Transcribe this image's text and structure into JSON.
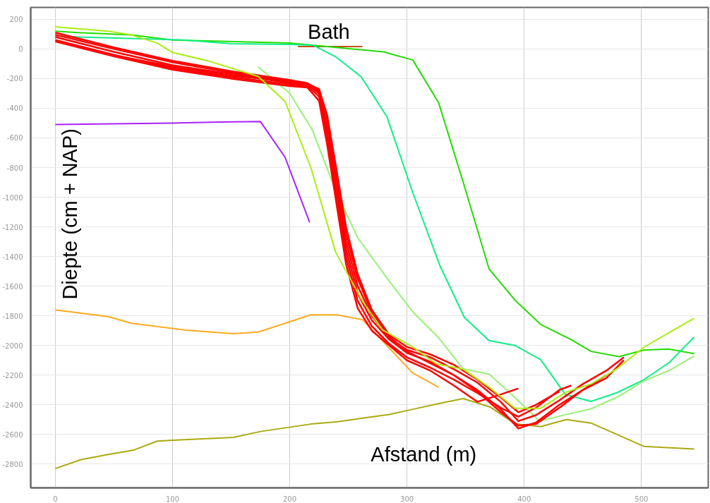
{
  "chart_data": {
    "type": "line",
    "title": "Bath",
    "xlabel": "Afstand (m)",
    "ylabel": "Diepte (cm + NAP)",
    "xlim": [
      -21,
      557
    ],
    "ylim": [
      -2960,
      280
    ],
    "xticks": [
      0,
      100,
      200,
      300,
      400,
      500
    ],
    "yticks": [
      -2800,
      -2600,
      -2400,
      -2200,
      -2000,
      -1800,
      -1600,
      -1400,
      -1200,
      -1000,
      -800,
      -600,
      -400,
      -200,
      0,
      200
    ],
    "grid": true,
    "line_style": "solid",
    "marker": "none",
    "series": [
      {
        "color": "#aa22ff",
        "x": [
          0,
          50,
          100,
          140,
          175,
          196,
          217
        ],
        "values": [
          -510,
          -505,
          -500,
          -493,
          -490,
          -731,
          -1170
        ]
      },
      {
        "color": "#ffaa22",
        "x": [
          0,
          20,
          45,
          65,
          110,
          152,
          173,
          218,
          240,
          262,
          305,
          327
        ],
        "values": [
          -1760,
          -1780,
          -1805,
          -1850,
          -1895,
          -1920,
          -1910,
          -1793,
          -1793,
          -1826,
          -2186,
          -2281
        ]
      },
      {
        "color": "#aaaa11",
        "x": [
          0,
          22,
          45,
          67,
          87,
          110,
          152,
          175,
          218,
          240,
          262,
          285,
          305,
          328,
          348,
          371,
          392,
          414,
          436,
          457,
          502,
          545
        ],
        "values": [
          -2830,
          -2770,
          -2735,
          -2705,
          -2645,
          -2635,
          -2620,
          -2580,
          -2530,
          -2515,
          -2490,
          -2465,
          -2430,
          -2390,
          -2358,
          -2415,
          -2528,
          -2547,
          -2500,
          -2523,
          -2680,
          -2698
        ]
      },
      {
        "color": "#bb5511",
        "x": [
          207,
          262
        ],
        "values": [
          16,
          16
        ]
      },
      {
        "color": "#22dd00",
        "x": [
          0,
          20,
          65,
          100,
          200,
          240,
          280,
          305,
          327,
          348,
          370,
          392,
          414,
          440,
          457,
          481,
          502,
          523,
          545
        ],
        "values": [
          120,
          110,
          95,
          60,
          40,
          10,
          -20,
          -75,
          -363,
          -900,
          -1483,
          -1693,
          -1858,
          -1960,
          -2040,
          -2075,
          -2031,
          -2024,
          -2055
        ]
      },
      {
        "color": "#11ee88",
        "x": [
          0,
          20,
          110,
          150,
          200,
          220,
          239,
          261,
          283,
          305,
          328,
          349,
          370,
          392,
          414,
          435,
          457,
          479,
          502,
          524,
          545
        ],
        "values": [
          90,
          80,
          60,
          35,
          30,
          25,
          -52,
          -189,
          -459,
          -970,
          -1460,
          -1811,
          -1967,
          -2000,
          -2095,
          -2330,
          -2377,
          -2319,
          -2231,
          -2113,
          -1943
        ]
      },
      {
        "color": "#99f077",
        "x": [
          173,
          200,
          219,
          239,
          258,
          284,
          305,
          327,
          348,
          370,
          392,
          413,
          435,
          457,
          479,
          502,
          524,
          545
        ],
        "values": [
          -121,
          -299,
          -543,
          -951,
          -1274,
          -1557,
          -1774,
          -1948,
          -2158,
          -2193,
          -2350,
          -2510,
          -2467,
          -2427,
          -2350,
          -2240,
          -2167,
          -2071
        ]
      },
      {
        "color": "#ff0000",
        "x": [
          0,
          50,
          100,
          150,
          200,
          215,
          225,
          232,
          240,
          248,
          258,
          270,
          285,
          300,
          320,
          340,
          360,
          380,
          395,
          410,
          430,
          450,
          470,
          485
        ],
        "values": [
          110,
          10,
          -80,
          -150,
          -210,
          -230,
          -280,
          -500,
          -900,
          -1300,
          -1600,
          -1800,
          -1950,
          -2030,
          -2080,
          -2160,
          -2250,
          -2380,
          -2510,
          -2470,
          -2370,
          -2260,
          -2170,
          -2080
        ]
      },
      {
        "color": "#ff0000",
        "x": [
          0,
          50,
          100,
          150,
          200,
          215,
          225,
          232,
          240,
          248,
          258,
          270,
          285,
          300,
          320,
          340,
          360,
          380,
          395,
          410,
          430,
          450,
          470
        ],
        "values": [
          80,
          -20,
          -110,
          -170,
          -230,
          -240,
          -300,
          -550,
          -950,
          -1350,
          -1650,
          -1830,
          -1960,
          -2050,
          -2110,
          -2200,
          -2300,
          -2430,
          -2560,
          -2520,
          -2400,
          -2300,
          -2200
        ]
      },
      {
        "color": "#ff0000",
        "x": [
          0,
          50,
          100,
          150,
          200,
          215,
          225,
          232,
          240,
          248,
          258,
          270,
          285,
          300,
          320,
          340,
          360,
          380,
          395,
          410,
          430,
          440
        ],
        "values": [
          60,
          -40,
          -130,
          -190,
          -240,
          -250,
          -320,
          -600,
          -1000,
          -1400,
          -1700,
          -1870,
          -1990,
          -2080,
          -2150,
          -2230,
          -2320,
          -2420,
          -2480,
          -2420,
          -2300,
          -2270
        ]
      },
      {
        "color": "#ff0000",
        "x": [
          0,
          50,
          100,
          150,
          200,
          215,
          225,
          232,
          240,
          248,
          258,
          270,
          285,
          300,
          320,
          340,
          360,
          380,
          395
        ],
        "values": [
          50,
          -50,
          -140,
          -200,
          -250,
          -260,
          -350,
          -650,
          -1050,
          -1450,
          -1750,
          -1900,
          -2000,
          -2100,
          -2170,
          -2270,
          -2380,
          -2330,
          -2290
        ]
      },
      {
        "color": "#ff0000",
        "x": [
          42,
          100,
          150,
          200,
          215,
          225,
          232,
          240,
          248,
          258,
          270,
          285,
          300,
          320,
          340,
          360,
          380,
          395,
          410,
          430
        ],
        "values": [
          -30,
          -120,
          -180,
          -220,
          -235,
          -270,
          -450,
          -820,
          -1200,
          -1520,
          -1760,
          -1930,
          -2010,
          -2060,
          -2130,
          -2230,
          -2350,
          -2450,
          -2400,
          -2310
        ]
      },
      {
        "color": "#ff0000",
        "x": [
          0,
          50,
          100,
          150,
          200,
          215,
          225,
          232,
          240,
          248,
          258,
          270,
          285,
          300,
          320,
          340,
          360,
          380,
          395,
          410,
          430,
          450,
          470,
          485
        ],
        "values": [
          95,
          0,
          -90,
          -160,
          -220,
          -235,
          -290,
          -480,
          -850,
          -1250,
          -1550,
          -1780,
          -1940,
          -2040,
          -2120,
          -2200,
          -2310,
          -2450,
          -2540,
          -2530,
          -2420,
          -2300,
          -2220,
          -2100
        ]
      },
      {
        "color": "#aaee11",
        "x": [
          0,
          45,
          65,
          87,
          100,
          130,
          173,
          196,
          218,
          239,
          262,
          279,
          305,
          325,
          348,
          370,
          392,
          414,
          436,
          457,
          479,
          502,
          524,
          545
        ],
        "values": [
          149,
          120,
          94,
          39,
          -24,
          -80,
          -185,
          -354,
          -800,
          -1368,
          -1700,
          -1894,
          -2010,
          -2124,
          -2160,
          -2280,
          -2423,
          -2423,
          -2314,
          -2260,
          -2158,
          -2012,
          -1911,
          -1816
        ]
      }
    ]
  }
}
